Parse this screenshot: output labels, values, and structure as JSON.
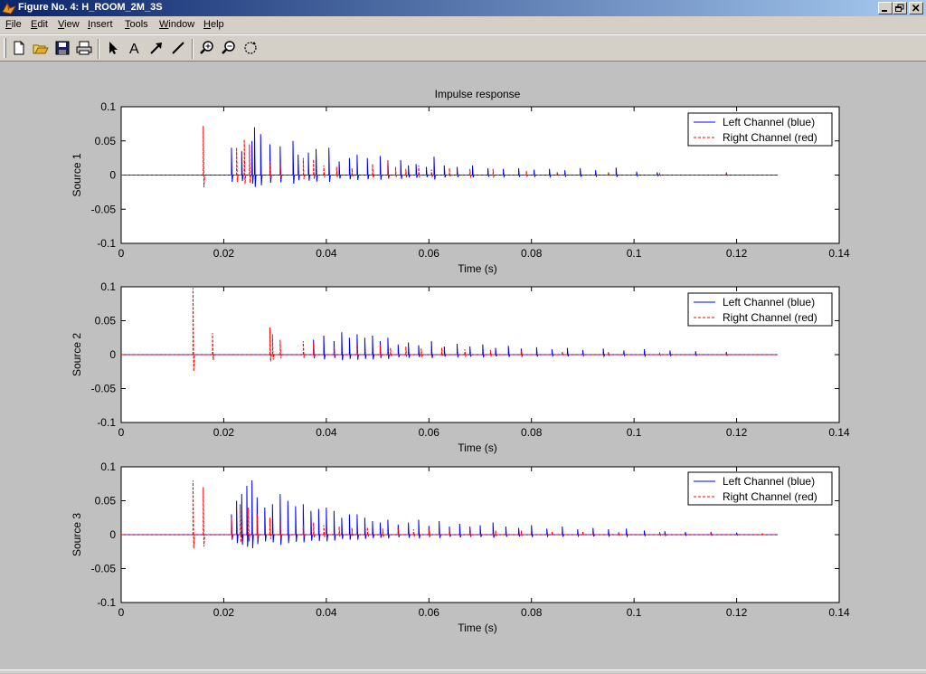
{
  "window": {
    "title": "Figure No. 4: H_ROOM_2M_3S"
  },
  "menu": [
    {
      "label": "File",
      "key": "F"
    },
    {
      "label": "Edit",
      "key": "E"
    },
    {
      "label": "View",
      "key": "V"
    },
    {
      "label": "Insert",
      "key": "I"
    },
    {
      "label": "Tools",
      "key": "T"
    },
    {
      "label": "Window",
      "key": "W"
    },
    {
      "label": "Help",
      "key": "H"
    }
  ],
  "toolbar": {
    "buttons": [
      "new-figure-icon",
      "open-file-icon",
      "save-icon",
      "print-icon",
      "edit-plot-arrow-icon",
      "insert-text-icon",
      "insert-arrow-icon",
      "insert-line-icon",
      "zoom-in-icon",
      "zoom-out-icon",
      "rotate-3d-icon"
    ]
  },
  "colors": {
    "left": "#0000ff",
    "right": "#ff0000",
    "title_bar": "#0a246a"
  },
  "chart_data": [
    {
      "type": "line",
      "title": "Impulse response",
      "xlabel": "Time (s)",
      "ylabel": "Source 1",
      "xlim": [
        0,
        0.14
      ],
      "ylim": [
        -0.1,
        0.1
      ],
      "xticks": [
        "0",
        "0.02",
        "0.04",
        "0.06",
        "0.08",
        "0.1",
        "0.12",
        "0.14"
      ],
      "yticks": [
        "0.1",
        "0.05",
        "0",
        "-0.05",
        "-0.1"
      ],
      "legend": {
        "position": "top-right",
        "entries": [
          "Left Channel (blue)",
          "Right Channel (red)"
        ]
      },
      "series": [
        {
          "name": "Left Channel (blue)",
          "color": "#0000ff",
          "style": "solid",
          "x": [
            0.0215,
            0.0235,
            0.0255,
            0.026,
            0.0272,
            0.029,
            0.031,
            0.0335,
            0.0345,
            0.0365,
            0.038,
            0.0405,
            0.0425,
            0.0445,
            0.046,
            0.048,
            0.0505,
            0.052,
            0.0545,
            0.056,
            0.0575,
            0.0595,
            0.061,
            0.063,
            0.0655,
            0.0685,
            0.0715,
            0.0745,
            0.0775,
            0.0805,
            0.0835,
            0.0865,
            0.0895,
            0.0925,
            0.0965,
            0.1005,
            0.1045,
            0.118
          ],
          "y": [
            0.04,
            0.035,
            0.05,
            0.07,
            0.06,
            0.045,
            0.042,
            0.05,
            0.03,
            0.033,
            0.038,
            0.04,
            0.02,
            0.025,
            0.03,
            0.025,
            0.028,
            0.018,
            0.022,
            0.014,
            0.016,
            0.012,
            0.027,
            0.014,
            0.012,
            0.014,
            0.01,
            0.009,
            0.01,
            0.008,
            0.009,
            0.007,
            0.01,
            0.007,
            0.011,
            0.005,
            0.004,
            0.002
          ]
        },
        {
          "name": "Right Channel (red)",
          "color": "#ff0000",
          "style": "dashed",
          "x": [
            0.016,
            0.0225,
            0.024,
            0.025,
            0.029,
            0.031,
            0.0355,
            0.0375,
            0.0395,
            0.042,
            0.045,
            0.049,
            0.052,
            0.0535,
            0.0555,
            0.058,
            0.0605,
            0.064,
            0.068,
            0.0725,
            0.079,
            0.085,
            0.095,
            0.105,
            0.118
          ],
          "y": [
            0.072,
            0.04,
            0.052,
            0.045,
            0.02,
            0.018,
            0.025,
            0.023,
            0.014,
            0.012,
            0.01,
            0.016,
            0.022,
            0.012,
            0.009,
            0.014,
            0.008,
            0.01,
            0.009,
            0.009,
            0.006,
            0.005,
            0.005,
            0.003,
            0.005
          ]
        }
      ]
    },
    {
      "type": "line",
      "title": "",
      "xlabel": "Time (s)",
      "ylabel": "Source 2",
      "xlim": [
        0,
        0.14
      ],
      "ylim": [
        -0.1,
        0.1
      ],
      "xticks": [
        "0",
        "0.02",
        "0.04",
        "0.06",
        "0.08",
        "0.1",
        "0.12",
        "0.14"
      ],
      "yticks": [
        "0.1",
        "0.05",
        "0",
        "-0.05",
        "-0.1"
      ],
      "legend": {
        "position": "top-right",
        "entries": [
          "Left Channel (blue)",
          "Right Channel (red)"
        ]
      },
      "series": [
        {
          "name": "Left Channel (blue)",
          "color": "#0000ff",
          "style": "solid",
          "x": [
            0.0375,
            0.0395,
            0.0415,
            0.043,
            0.0445,
            0.046,
            0.0475,
            0.049,
            0.0505,
            0.052,
            0.054,
            0.056,
            0.058,
            0.0605,
            0.063,
            0.0655,
            0.068,
            0.0705,
            0.073,
            0.0755,
            0.078,
            0.081,
            0.084,
            0.087,
            0.09,
            0.094,
            0.098,
            0.102,
            0.107,
            0.112,
            0.118
          ],
          "y": [
            0.022,
            0.028,
            0.02,
            0.033,
            0.025,
            0.03,
            0.025,
            0.028,
            0.02,
            0.025,
            0.015,
            0.018,
            0.014,
            0.02,
            0.012,
            0.016,
            0.012,
            0.015,
            0.01,
            0.013,
            0.009,
            0.011,
            0.008,
            0.01,
            0.007,
            0.009,
            0.006,
            0.008,
            0.006,
            0.005,
            0.004
          ]
        },
        {
          "name": "Right Channel (red)",
          "color": "#ff0000",
          "style": "dashed",
          "x": [
            0.014,
            0.0178,
            0.029,
            0.0295,
            0.031,
            0.0355,
            0.0375,
            0.0415,
            0.046,
            0.0505,
            0.0525,
            0.0555,
            0.0585,
            0.0625,
            0.067,
            0.072,
            0.078,
            0.086,
            0.095,
            0.105,
            0.118
          ],
          "y": [
            0.098,
            0.032,
            0.04,
            0.03,
            0.022,
            0.02,
            0.018,
            0.012,
            0.014,
            0.015,
            0.01,
            0.012,
            0.009,
            0.01,
            0.008,
            0.007,
            0.006,
            0.005,
            0.004,
            0.003,
            0.003
          ]
        }
      ]
    },
    {
      "type": "line",
      "title": "",
      "xlabel": "Time (s)",
      "ylabel": "Source 3",
      "xlim": [
        0,
        0.14
      ],
      "ylim": [
        -0.1,
        0.1
      ],
      "xticks": [
        "0",
        "0.02",
        "0.04",
        "0.06",
        "0.08",
        "0.1",
        "0.12",
        "0.14"
      ],
      "yticks": [
        "0.1",
        "0.05",
        "0",
        "-0.05",
        "-0.1"
      ],
      "legend": {
        "position": "top-right",
        "entries": [
          "Left Channel (blue)",
          "Right Channel (red)"
        ]
      },
      "series": [
        {
          "name": "Left Channel (blue)",
          "color": "#0000ff",
          "style": "solid",
          "x": [
            0.0215,
            0.0225,
            0.0235,
            0.0245,
            0.0255,
            0.0265,
            0.028,
            0.0295,
            0.031,
            0.0325,
            0.034,
            0.0355,
            0.037,
            0.0385,
            0.04,
            0.0415,
            0.043,
            0.0445,
            0.046,
            0.0475,
            0.049,
            0.0505,
            0.052,
            0.054,
            0.056,
            0.058,
            0.06,
            0.062,
            0.064,
            0.066,
            0.068,
            0.07,
            0.0725,
            0.075,
            0.0775,
            0.08,
            0.083,
            0.086,
            0.089,
            0.092,
            0.095,
            0.0985,
            0.102,
            0.106,
            0.11,
            0.115,
            0.12
          ],
          "y": [
            0.03,
            0.05,
            0.06,
            0.072,
            0.08,
            0.055,
            0.04,
            0.045,
            0.06,
            0.05,
            0.042,
            0.045,
            0.035,
            0.038,
            0.04,
            0.035,
            0.025,
            0.03,
            0.03,
            0.025,
            0.02,
            0.018,
            0.022,
            0.015,
            0.018,
            0.022,
            0.013,
            0.02,
            0.012,
            0.016,
            0.012,
            0.014,
            0.018,
            0.012,
            0.01,
            0.014,
            0.009,
            0.012,
            0.008,
            0.01,
            0.008,
            0.009,
            0.006,
            0.005,
            0.004,
            0.004,
            0.003
          ]
        },
        {
          "name": "Right Channel (red)",
          "color": "#ff0000",
          "style": "dashed",
          "x": [
            0.014,
            0.016,
            0.0215,
            0.0232,
            0.0248,
            0.0265,
            0.029,
            0.031,
            0.0355,
            0.0375,
            0.0395,
            0.0425,
            0.045,
            0.048,
            0.051,
            0.054,
            0.057,
            0.06,
            0.064,
            0.068,
            0.073,
            0.078,
            0.084,
            0.09,
            0.097,
            0.105,
            0.115,
            0.125
          ],
          "y": [
            0.08,
            0.07,
            0.025,
            0.045,
            0.04,
            0.03,
            0.025,
            0.02,
            0.015,
            0.018,
            0.014,
            0.012,
            0.01,
            0.011,
            0.009,
            0.01,
            0.008,
            0.009,
            0.007,
            0.008,
            0.006,
            0.006,
            0.005,
            0.005,
            0.004,
            0.004,
            0.003,
            0.002
          ]
        }
      ]
    }
  ]
}
